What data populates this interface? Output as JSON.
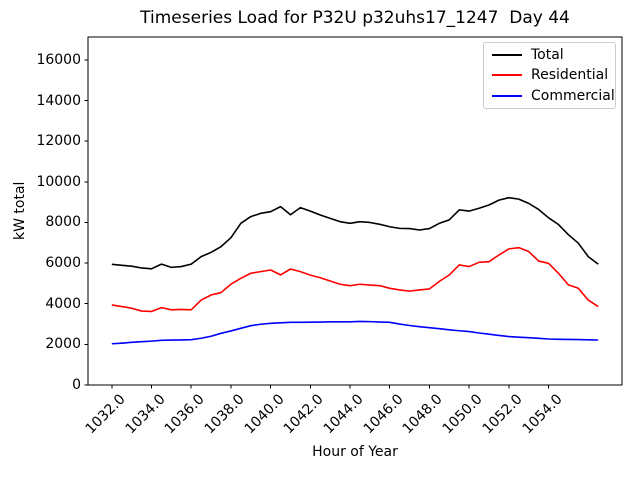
{
  "title": "Timeseries Load for P32U p32uhs17_1247  Day 44",
  "chart_data": {
    "type": "line",
    "title": "Timeseries Load for P32U p32uhs17_1247  Day 44",
    "xlabel": "Hour of Year",
    "ylabel": "kW total",
    "grid": false,
    "legend_position": "upper right",
    "xlim": [
      1030.8,
      1057.7
    ],
    "ylim": [
      0,
      17130
    ],
    "xticks": {
      "values": [
        1032,
        1034,
        1036,
        1038,
        1040,
        1042,
        1044,
        1046,
        1048,
        1050,
        1052,
        1054
      ],
      "labels": [
        "1032.0",
        "1034.0",
        "1036.0",
        "1038.0",
        "1040.0",
        "1042.0",
        "1044.0",
        "1046.0",
        "1048.0",
        "1050.0",
        "1052.0",
        "1054.0"
      ]
    },
    "yticks": {
      "values": [
        0,
        2000,
        4000,
        6000,
        8000,
        10000,
        12000,
        14000,
        16000
      ],
      "labels": [
        "0",
        "2000",
        "4000",
        "6000",
        "8000",
        "10000",
        "12000",
        "14000",
        "16000"
      ]
    },
    "x": [
      1032.0,
      1032.5,
      1033.0,
      1033.5,
      1034.0,
      1034.5,
      1035.0,
      1035.5,
      1036.0,
      1036.5,
      1037.0,
      1037.5,
      1038.0,
      1038.5,
      1039.0,
      1039.5,
      1040.0,
      1040.5,
      1041.0,
      1041.5,
      1042.0,
      1042.5,
      1043.0,
      1043.5,
      1044.0,
      1044.5,
      1045.0,
      1045.5,
      1046.0,
      1046.5,
      1047.0,
      1047.5,
      1048.0,
      1048.5,
      1049.0,
      1049.5,
      1050.0,
      1050.5,
      1051.0,
      1051.5,
      1052.0,
      1052.5,
      1053.0,
      1053.5,
      1054.0,
      1054.5,
      1055.0,
      1055.5,
      1056.0,
      1056.5
    ],
    "series": [
      {
        "name": "Total",
        "color": "#000000",
        "values": [
          5940,
          5890,
          5850,
          5760,
          5720,
          5950,
          5790,
          5830,
          5950,
          6320,
          6530,
          6810,
          7250,
          7960,
          8290,
          8450,
          8530,
          8780,
          8380,
          8730,
          8560,
          8370,
          8200,
          8040,
          7960,
          8040,
          8000,
          7910,
          7790,
          7710,
          7700,
          7630,
          7700,
          7960,
          8130,
          8620,
          8560,
          8700,
          8860,
          9100,
          9220,
          9150,
          8940,
          8640,
          8230,
          7900,
          7400,
          6980,
          6320,
          5950
        ]
      },
      {
        "name": "Residential",
        "color": "#ff0000",
        "values": [
          3940,
          3860,
          3780,
          3640,
          3620,
          3810,
          3700,
          3720,
          3700,
          4180,
          4430,
          4550,
          4960,
          5250,
          5500,
          5580,
          5660,
          5420,
          5710,
          5580,
          5410,
          5280,
          5120,
          4960,
          4890,
          4960,
          4920,
          4890,
          4760,
          4680,
          4620,
          4680,
          4730,
          5100,
          5420,
          5910,
          5830,
          6040,
          6070,
          6400,
          6700,
          6760,
          6570,
          6100,
          5990,
          5500,
          4930,
          4760,
          4180,
          3860
        ]
      },
      {
        "name": "Commercial",
        "color": "#0000ff",
        "values": [
          2030,
          2060,
          2100,
          2130,
          2160,
          2200,
          2210,
          2220,
          2230,
          2300,
          2400,
          2545,
          2660,
          2790,
          2920,
          2990,
          3035,
          3060,
          3085,
          3085,
          3090,
          3100,
          3110,
          3110,
          3110,
          3130,
          3120,
          3100,
          3085,
          3000,
          2930,
          2870,
          2820,
          2770,
          2715,
          2670,
          2630,
          2560,
          2500,
          2440,
          2385,
          2355,
          2330,
          2300,
          2265,
          2250,
          2245,
          2235,
          2225,
          2215
        ]
      }
    ]
  }
}
